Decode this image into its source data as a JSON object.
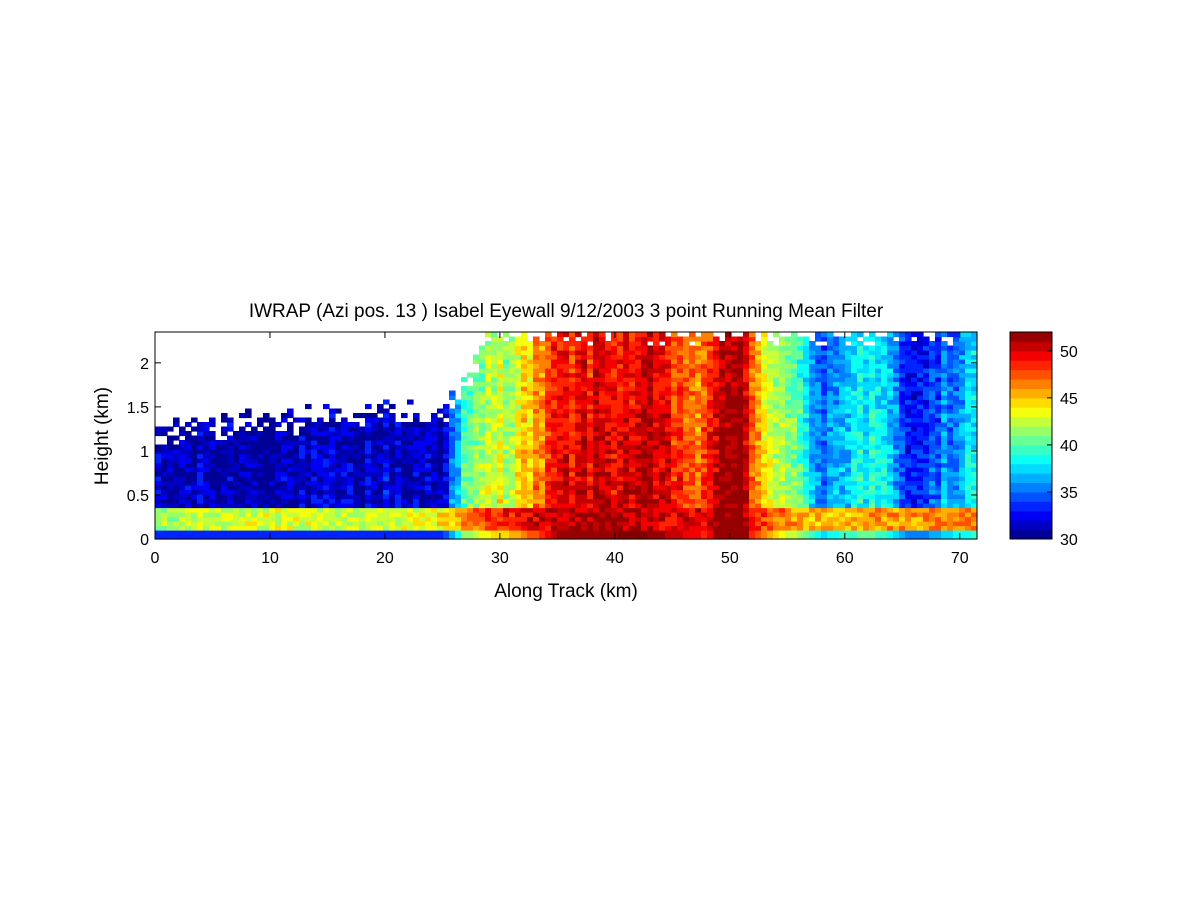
{
  "chart_data": {
    "type": "heatmap",
    "title": "IWRAP (Azi pos. 13 ) Isabel Eyewall 9/12/2003 3 point Running Mean Filter",
    "xlabel": "Along Track (km)",
    "ylabel": "Height (km)",
    "xlim": [
      0,
      71.5
    ],
    "ylim": [
      0,
      2.35
    ],
    "x_ticks": [
      0,
      10,
      20,
      30,
      40,
      50,
      60,
      70
    ],
    "y_ticks": [
      0,
      0.5,
      1,
      1.5,
      2
    ],
    "y_tick_labels": [
      "0",
      "0.5",
      "1",
      "1.5",
      "2"
    ],
    "colorbar": {
      "min": 30,
      "max": 52,
      "ticks": [
        30,
        35,
        40,
        45,
        50
      ],
      "colormap": "jet"
    },
    "grid": false,
    "profile": {
      "along_track_km": [
        0,
        5,
        10,
        15,
        20,
        25,
        27,
        29,
        31,
        33,
        35,
        37,
        40,
        43,
        46,
        48,
        49,
        50,
        51,
        52,
        54,
        56,
        58,
        60,
        62,
        64,
        66,
        68,
        70,
        71.5
      ],
      "upper_value": [
        31.5,
        31.5,
        31.5,
        31.5,
        32.0,
        32.0,
        40.0,
        42.5,
        43.5,
        46.0,
        49.5,
        50.0,
        50.5,
        50.5,
        48.5,
        47.0,
        52.0,
        52.5,
        52.0,
        47.0,
        43.0,
        40.0,
        36.0,
        38.0,
        39.0,
        37.0,
        33.5,
        35.0,
        37.0,
        38.0
      ],
      "low_level_value": [
        42.0,
        42.5,
        43.0,
        42.5,
        42.5,
        44.0,
        46.0,
        48.0,
        49.0,
        50.0,
        50.5,
        51.0,
        51.0,
        50.5,
        50.0,
        49.5,
        52.0,
        52.5,
        52.0,
        49.0,
        47.0,
        45.5,
        45.0,
        45.0,
        45.5,
        46.0,
        46.0,
        46.5,
        46.5,
        46.5
      ],
      "echo_top_km": [
        1.25,
        1.3,
        1.3,
        1.4,
        1.45,
        1.4,
        1.7,
        2.35,
        2.35,
        2.35,
        2.35,
        2.35,
        2.35,
        2.35,
        2.35,
        2.35,
        2.35,
        2.35,
        2.35,
        2.35,
        2.35,
        2.35,
        2.35,
        2.35,
        2.35,
        2.35,
        2.35,
        2.35,
        2.35,
        2.35
      ]
    }
  }
}
